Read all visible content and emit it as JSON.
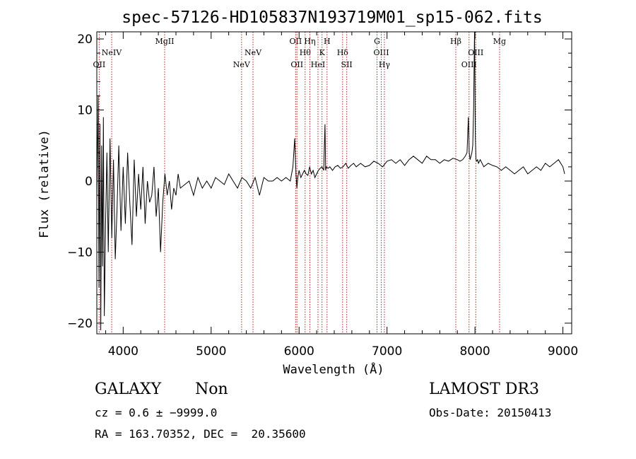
{
  "chart_data": {
    "type": "line",
    "title": "spec-57126-HD105837N193719M01_sp15-062.fits",
    "xlabel": "Wavelength (Å)",
    "ylabel": "Flux (relative)",
    "xlim": [
      3700,
      9100
    ],
    "ylim": [
      -21.5,
      21
    ],
    "xticks": [
      4000,
      5000,
      6000,
      7000,
      8000,
      9000
    ],
    "xtick_labels": [
      "4000",
      "5000",
      "6000",
      "7000",
      "8000",
      "9000"
    ],
    "yticks": [
      -20,
      -10,
      0,
      10,
      20
    ],
    "ytick_labels": [
      "−20",
      "−10",
      "0",
      "10",
      "20"
    ],
    "grid": false,
    "legend": "none",
    "series": [
      {
        "name": "flux",
        "x": [
          3700,
          3715,
          3725,
          3735,
          3745,
          3755,
          3765,
          3775,
          3785,
          3800,
          3815,
          3830,
          3850,
          3870,
          3890,
          3910,
          3930,
          3950,
          3975,
          4000,
          4025,
          4050,
          4075,
          4100,
          4125,
          4150,
          4175,
          4200,
          4225,
          4250,
          4275,
          4300,
          4325,
          4350,
          4375,
          4400,
          4425,
          4450,
          4475,
          4500,
          4525,
          4550,
          4575,
          4600,
          4625,
          4650,
          4700,
          4750,
          4800,
          4850,
          4900,
          4950,
          5000,
          5050,
          5100,
          5150,
          5200,
          5250,
          5300,
          5350,
          5400,
          5450,
          5500,
          5550,
          5600,
          5650,
          5700,
          5750,
          5800,
          5850,
          5900,
          5930,
          5950,
          5965,
          5975,
          5985,
          6000,
          6020,
          6040,
          6060,
          6080,
          6100,
          6120,
          6140,
          6160,
          6180,
          6200,
          6220,
          6240,
          6260,
          6280,
          6295,
          6302,
          6310,
          6330,
          6350,
          6380,
          6410,
          6440,
          6470,
          6500,
          6530,
          6560,
          6590,
          6620,
          6650,
          6700,
          6750,
          6800,
          6850,
          6900,
          6950,
          7000,
          7050,
          7100,
          7150,
          7200,
          7250,
          7300,
          7350,
          7400,
          7450,
          7500,
          7550,
          7600,
          7650,
          7700,
          7750,
          7800,
          7830,
          7860,
          7890,
          7910,
          7925,
          7935,
          7945,
          7955,
          7965,
          7975,
          7985,
          7995,
          8000,
          8005,
          8012,
          8020,
          8030,
          8040,
          8060,
          8100,
          8150,
          8200,
          8250,
          8300,
          8350,
          8400,
          8450,
          8500,
          8550,
          8600,
          8650,
          8700,
          8750,
          8800,
          8850,
          8900,
          8950,
          9000,
          9020
        ],
        "y": [
          -3,
          12,
          -15,
          8,
          -21,
          5,
          -12,
          9,
          -19,
          -6,
          4,
          -10,
          6,
          -8,
          3,
          -11,
          -4,
          5,
          -7,
          2,
          -6,
          4,
          -3,
          -9,
          3,
          -5,
          1,
          -4,
          2,
          -6,
          0,
          -3,
          -2,
          2,
          -5,
          -1,
          -10,
          -3,
          1,
          -2,
          0,
          -4,
          -1,
          -2,
          1,
          -1,
          -0.5,
          0,
          -2,
          0.5,
          -1,
          0,
          -1,
          0.5,
          0,
          -0.5,
          1,
          0,
          -1,
          0.5,
          0,
          -1,
          0.5,
          -2,
          0.5,
          0,
          0,
          0.5,
          0,
          0.5,
          0,
          2,
          6,
          1,
          -1,
          0.5,
          1.5,
          0.5,
          1,
          1.5,
          1,
          0.8,
          2,
          1,
          1.5,
          0.5,
          1,
          1.5,
          1.8,
          2,
          1.5,
          8,
          1.5,
          2,
          1.8,
          2,
          1.5,
          2,
          2.2,
          1.8,
          2,
          2.5,
          1.8,
          2.2,
          2.5,
          2,
          2.5,
          2,
          2.2,
          2.8,
          2.5,
          2,
          2.8,
          3,
          2.5,
          3,
          2.2,
          3,
          3.5,
          3,
          2.5,
          3.5,
          3,
          3,
          2.5,
          3,
          2.8,
          3.2,
          3,
          2.8,
          3,
          3.5,
          4,
          9,
          4,
          3,
          3.5,
          4,
          5,
          10,
          21,
          14,
          6,
          3,
          2.8,
          3,
          2.5,
          3,
          2,
          2.5,
          2.2,
          2,
          1.5,
          2,
          1.5,
          1,
          1.5,
          2,
          1,
          1.5,
          2,
          1.5,
          2.5,
          2,
          2.5,
          3,
          2,
          1
        ]
      }
    ],
    "lines": [
      {
        "x": 3727,
        "label": "OII",
        "row": 3
      },
      {
        "x": 3869,
        "label": "NeIV",
        "row": 2
      },
      {
        "x": 4471,
        "label": "MgII",
        "row": 1
      },
      {
        "x": 5346,
        "label": "NeV",
        "row": 3
      },
      {
        "x": 5476,
        "label": "NeV",
        "row": 2
      },
      {
        "x": 5961,
        "label": "OII",
        "row": 1
      },
      {
        "x": 5976,
        "label": "OII",
        "row": 3
      },
      {
        "x": 6069,
        "label": "Hθ",
        "row": 2
      },
      {
        "x": 6123,
        "label": "Hη",
        "row": 1
      },
      {
        "x": 6215,
        "label": "HeI",
        "row": 3
      },
      {
        "x": 6261,
        "label": "K",
        "row": 2
      },
      {
        "x": 6318,
        "label": "H",
        "row": 1
      },
      {
        "x": 6495,
        "label": "Hδ",
        "row": 2
      },
      {
        "x": 6542,
        "label": "SII",
        "row": 3
      },
      {
        "x": 6886,
        "label": "G",
        "row": 1
      },
      {
        "x": 6935,
        "label": "OIII",
        "row": 2
      },
      {
        "x": 6970,
        "label": "Hγ",
        "row": 3
      },
      {
        "x": 7782,
        "label": "Hβ",
        "row": 1
      },
      {
        "x": 7933,
        "label": "OIII",
        "row": 3
      },
      {
        "x": 8009,
        "label": "OIII",
        "row": 2
      },
      {
        "x": 8280,
        "label": "Mg",
        "row": 1
      }
    ]
  },
  "info": {
    "class_label": "GALAXY",
    "subclass_label": "Non",
    "cz_text": "cz = 0.6 ± −9999.0",
    "radec_text": "RA = 163.70352, DEC =  20.35600",
    "survey_label": "LAMOST DR3",
    "obsdate_text": "Obs-Date: 20150413"
  }
}
